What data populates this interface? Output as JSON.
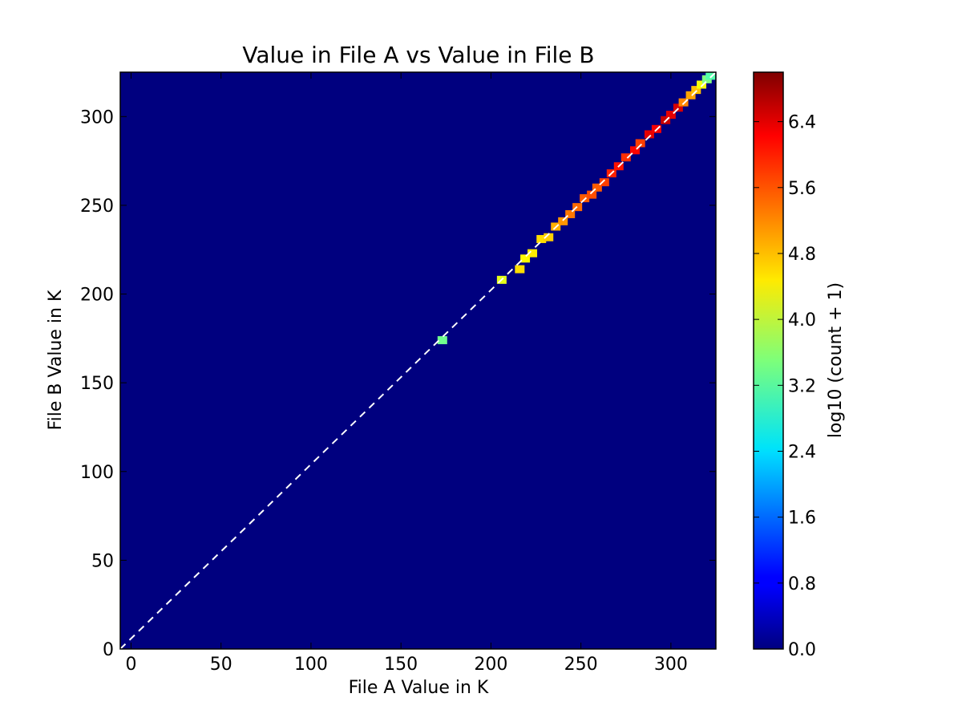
{
  "chart_data": {
    "type": "heatmap",
    "title": "Value in File A vs Value in File B",
    "xlabel": "File A Value in K",
    "ylabel": "File B Value in K",
    "xlim": [
      -6,
      325
    ],
    "ylim": [
      0,
      325
    ],
    "xticks": [
      0,
      50,
      100,
      150,
      200,
      250,
      300
    ],
    "yticks": [
      0,
      50,
      100,
      150,
      200,
      250,
      300
    ],
    "background_color": "#00007f",
    "reference_line": {
      "style": "dashed",
      "color": "#ffffff",
      "from": [
        -6,
        0
      ],
      "to": [
        325,
        325
      ]
    },
    "colorbar": {
      "label": "log10 (count + 1)",
      "range": [
        0,
        7
      ],
      "ticks": [
        "0.0",
        "0.8",
        "1.6",
        "2.4",
        "3.2",
        "4.0",
        "4.8",
        "5.6",
        "6.4"
      ],
      "colormap": "jet"
    },
    "cells": [
      {
        "x": 173,
        "y": 174,
        "value": 3.4
      },
      {
        "x": 206,
        "y": 208,
        "value": 4.2
      },
      {
        "x": 216,
        "y": 214,
        "value": 4.6
      },
      {
        "x": 219,
        "y": 220,
        "value": 4.4
      },
      {
        "x": 223,
        "y": 223,
        "value": 4.5
      },
      {
        "x": 228,
        "y": 231,
        "value": 4.6
      },
      {
        "x": 232,
        "y": 232,
        "value": 4.7
      },
      {
        "x": 236,
        "y": 238,
        "value": 4.9
      },
      {
        "x": 240,
        "y": 241,
        "value": 5.1
      },
      {
        "x": 244,
        "y": 245,
        "value": 5.3
      },
      {
        "x": 248,
        "y": 249,
        "value": 5.4
      },
      {
        "x": 252,
        "y": 254,
        "value": 5.5
      },
      {
        "x": 256,
        "y": 256,
        "value": 5.6
      },
      {
        "x": 259,
        "y": 260,
        "value": 5.5
      },
      {
        "x": 263,
        "y": 263,
        "value": 5.7
      },
      {
        "x": 267,
        "y": 268,
        "value": 5.9
      },
      {
        "x": 271,
        "y": 272,
        "value": 6.0
      },
      {
        "x": 275,
        "y": 277,
        "value": 5.8
      },
      {
        "x": 280,
        "y": 281,
        "value": 6.1
      },
      {
        "x": 283,
        "y": 285,
        "value": 5.7
      },
      {
        "x": 288,
        "y": 290,
        "value": 6.3
      },
      {
        "x": 292,
        "y": 293,
        "value": 6.2
      },
      {
        "x": 297,
        "y": 298,
        "value": 6.5
      },
      {
        "x": 300,
        "y": 301,
        "value": 6.3
      },
      {
        "x": 304,
        "y": 305,
        "value": 6.4
      },
      {
        "x": 307,
        "y": 308,
        "value": 5.2
      },
      {
        "x": 311,
        "y": 312,
        "value": 5.0
      },
      {
        "x": 314,
        "y": 315,
        "value": 4.8
      },
      {
        "x": 317,
        "y": 318,
        "value": 4.3
      },
      {
        "x": 320,
        "y": 321,
        "value": 3.5
      },
      {
        "x": 322,
        "y": 323,
        "value": 3.2
      }
    ]
  }
}
